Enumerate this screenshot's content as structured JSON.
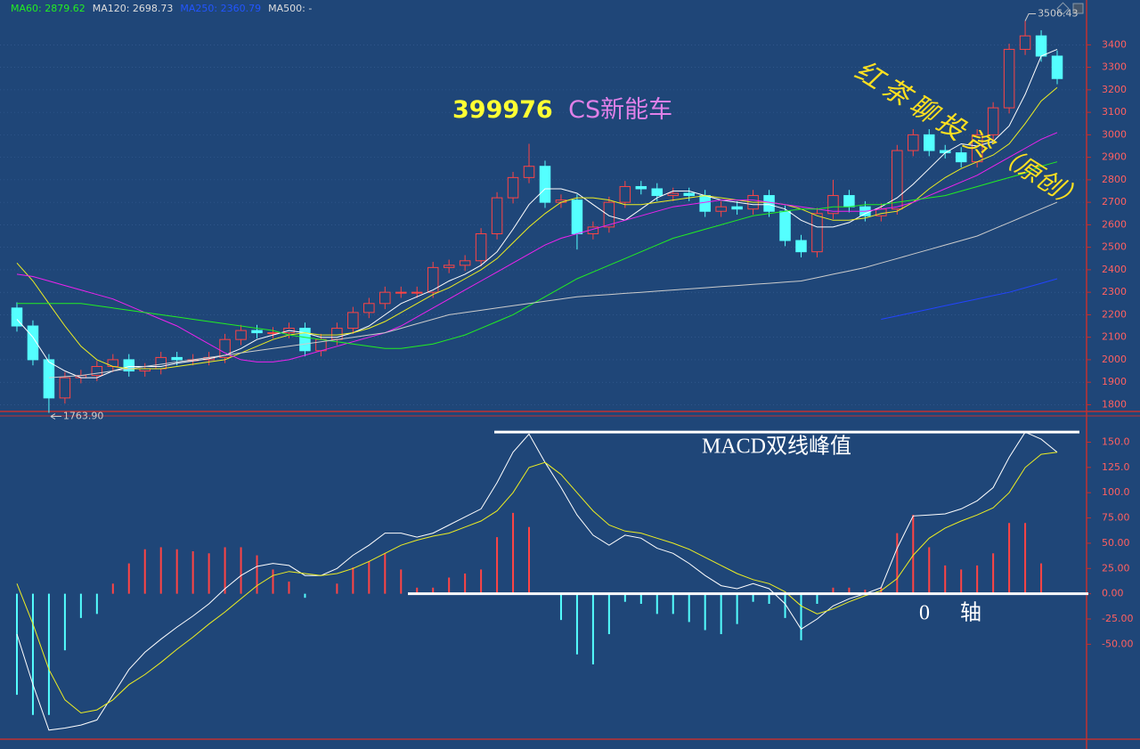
{
  "chart_data": [
    {
      "type": "candlestick",
      "title_code": "399976",
      "title_name": "CS新能车",
      "legend": [
        {
          "label": "MA60: 2879.62",
          "color": "#22ee22"
        },
        {
          "label": "MA120: 2698.73",
          "color": "#dddddd"
        },
        {
          "label": "MA250: 2360.79",
          "color": "#2255ff"
        },
        {
          "label": "MA500: -",
          "color": "#dddddd"
        }
      ],
      "watermark": [
        "红茶聊投资",
        "（原创）"
      ],
      "up_color": "#ff4444",
      "down_color": "#54ffff",
      "open": [
        2230,
        2150,
        2000,
        1830,
        1920,
        1930,
        1970,
        2000,
        1950,
        1960,
        2010,
        2000,
        2000,
        2010,
        2090,
        2130,
        2120,
        2120,
        2140,
        2040,
        2090,
        2140,
        2210,
        2250,
        2300,
        2300,
        2300,
        2410,
        2420,
        2440,
        2560,
        2720,
        2810,
        2860,
        2700,
        2710,
        2560,
        2590,
        2700,
        2770,
        2760,
        2730,
        2740,
        2730,
        2660,
        2680,
        2670,
        2730,
        2660,
        2530,
        2480,
        2650,
        2730,
        2680,
        2640,
        2670,
        2930,
        3000,
        2930,
        2920,
        2880,
        3000,
        3120,
        3380,
        3440,
        3350
      ],
      "high": [
        2255,
        2175,
        2025,
        1945,
        1955,
        1995,
        2025,
        2025,
        1985,
        2035,
        2035,
        2025,
        2035,
        2115,
        2155,
        2155,
        2145,
        2165,
        2165,
        2115,
        2165,
        2235,
        2275,
        2325,
        2325,
        2325,
        2435,
        2445,
        2465,
        2585,
        2745,
        2835,
        2960,
        2885,
        2735,
        2735,
        2615,
        2725,
        2795,
        2795,
        2785,
        2765,
        2765,
        2755,
        2705,
        2705,
        2755,
        2755,
        2685,
        2555,
        2675,
        2800,
        2755,
        2705,
        2695,
        2955,
        3025,
        3025,
        2955,
        2945,
        3025,
        3145,
        3405,
        3506.43,
        3465,
        3375
      ],
      "low": [
        2125,
        1975,
        1763.9,
        1805,
        1895,
        1905,
        1945,
        1925,
        1925,
        1935,
        1975,
        1975,
        1975,
        1985,
        2065,
        2095,
        2095,
        2095,
        2015,
        2015,
        2065,
        2115,
        2185,
        2225,
        2275,
        2275,
        2275,
        2385,
        2395,
        2415,
        2535,
        2695,
        2785,
        2675,
        2675,
        2490,
        2535,
        2565,
        2675,
        2735,
        2705,
        2705,
        2705,
        2635,
        2635,
        2645,
        2645,
        2635,
        2505,
        2455,
        2455,
        2625,
        2655,
        2615,
        2615,
        2645,
        2905,
        2905,
        2895,
        2855,
        2855,
        2975,
        3095,
        3355,
        3325,
        3225
      ],
      "close": [
        2150,
        2000,
        1830,
        1920,
        1930,
        1970,
        2000,
        1950,
        1960,
        2010,
        2000,
        2000,
        2010,
        2090,
        2130,
        2120,
        2120,
        2140,
        2040,
        2090,
        2140,
        2210,
        2250,
        2300,
        2300,
        2300,
        2410,
        2420,
        2440,
        2560,
        2720,
        2810,
        2860,
        2700,
        2710,
        2560,
        2590,
        2700,
        2770,
        2760,
        2730,
        2740,
        2730,
        2660,
        2680,
        2670,
        2730,
        2660,
        2530,
        2480,
        2650,
        2730,
        2680,
        2640,
        2670,
        2930,
        3000,
        2930,
        2920,
        2880,
        3000,
        3120,
        3380,
        3440,
        3350,
        3250
      ],
      "ma_lines": [
        {
          "color": "#ffffff",
          "values": [
            2180,
            2100,
            1990,
            1950,
            1920,
            1920,
            1950,
            1970,
            1970,
            1970,
            1985,
            1995,
            2005,
            2020,
            2050,
            2090,
            2110,
            2130,
            2120,
            2100,
            2100,
            2120,
            2150,
            2200,
            2250,
            2280,
            2310,
            2350,
            2380,
            2420,
            2480,
            2580,
            2690,
            2760,
            2760,
            2740,
            2690,
            2640,
            2620,
            2670,
            2720,
            2750,
            2750,
            2730,
            2710,
            2700,
            2690,
            2690,
            2670,
            2620,
            2590,
            2590,
            2610,
            2650,
            2680,
            2720,
            2780,
            2850,
            2920,
            2960,
            2950,
            2970,
            3040,
            3180,
            3350,
            3380
          ]
        },
        {
          "color": "#eeee22",
          "values": [
            2430,
            2350,
            2250,
            2150,
            2060,
            2000,
            1970,
            1960,
            1960,
            1960,
            1970,
            1980,
            1990,
            2000,
            2030,
            2060,
            2090,
            2110,
            2120,
            2110,
            2110,
            2120,
            2140,
            2170,
            2210,
            2250,
            2290,
            2320,
            2360,
            2400,
            2450,
            2520,
            2590,
            2650,
            2700,
            2720,
            2720,
            2710,
            2690,
            2690,
            2700,
            2710,
            2720,
            2730,
            2720,
            2710,
            2700,
            2700,
            2690,
            2670,
            2640,
            2620,
            2620,
            2630,
            2650,
            2660,
            2700,
            2760,
            2810,
            2850,
            2880,
            2910,
            2960,
            3050,
            3150,
            3210
          ]
        },
        {
          "color": "#ee22ee",
          "values": [
            2380,
            2370,
            2350,
            2330,
            2310,
            2290,
            2270,
            2240,
            2210,
            2180,
            2150,
            2110,
            2070,
            2030,
            2000,
            1990,
            1990,
            2000,
            2020,
            2040,
            2060,
            2080,
            2100,
            2120,
            2150,
            2190,
            2230,
            2270,
            2310,
            2350,
            2390,
            2430,
            2470,
            2510,
            2540,
            2560,
            2580,
            2600,
            2620,
            2640,
            2660,
            2680,
            2690,
            2700,
            2710,
            2710,
            2710,
            2700,
            2690,
            2680,
            2670,
            2660,
            2660,
            2660,
            2670,
            2680,
            2700,
            2730,
            2760,
            2790,
            2820,
            2860,
            2900,
            2940,
            2980,
            3010
          ]
        },
        {
          "color": "#22ee22",
          "values": [
            2250,
            2250,
            2250,
            2250,
            2250,
            2240,
            2230,
            2220,
            2210,
            2200,
            2190,
            2180,
            2170,
            2160,
            2150,
            2140,
            2130,
            2110,
            2100,
            2090,
            2080,
            2070,
            2060,
            2050,
            2050,
            2060,
            2070,
            2090,
            2110,
            2140,
            2170,
            2200,
            2240,
            2280,
            2320,
            2360,
            2390,
            2420,
            2450,
            2480,
            2510,
            2540,
            2560,
            2580,
            2600,
            2620,
            2640,
            2650,
            2660,
            2670,
            2670,
            2680,
            2680,
            2690,
            2690,
            2700,
            2710,
            2720,
            2730,
            2750,
            2770,
            2790,
            2810,
            2830,
            2860,
            2880
          ]
        },
        {
          "color": "#cccccc",
          "values": [
            null,
            null,
            1920,
            1925,
            1930,
            1940,
            1950,
            1960,
            1970,
            1980,
            1990,
            2000,
            2010,
            2020,
            2030,
            2040,
            2050,
            2060,
            2070,
            2080,
            2090,
            2100,
            2110,
            2120,
            2140,
            2160,
            2180,
            2200,
            2210,
            2220,
            2230,
            2240,
            2250,
            2260,
            2270,
            2280,
            2285,
            2290,
            2295,
            2300,
            2305,
            2310,
            2315,
            2320,
            2325,
            2330,
            2335,
            2340,
            2345,
            2350,
            2365,
            2380,
            2395,
            2410,
            2430,
            2450,
            2470,
            2490,
            2510,
            2530,
            2550,
            2580,
            2610,
            2640,
            2670,
            2700
          ]
        },
        {
          "color": "#2244ff",
          "values": [
            null,
            null,
            null,
            null,
            null,
            null,
            null,
            null,
            null,
            null,
            null,
            null,
            null,
            null,
            null,
            null,
            null,
            null,
            null,
            null,
            null,
            null,
            null,
            null,
            null,
            null,
            null,
            null,
            null,
            null,
            null,
            null,
            null,
            null,
            null,
            null,
            null,
            null,
            null,
            null,
            null,
            null,
            null,
            null,
            null,
            null,
            null,
            null,
            null,
            null,
            null,
            null,
            null,
            null,
            2180,
            2195,
            2210,
            2225,
            2240,
            2255,
            2270,
            2285,
            2300,
            2320,
            2340,
            2360
          ]
        }
      ],
      "max_label": 3506.43,
      "min_label": {
        "value": 1763.9,
        "label": "1763.90"
      },
      "ylim": [
        1770,
        3540
      ],
      "yticks": [
        1800,
        1900,
        2000,
        2100,
        2200,
        2300,
        2400,
        2500,
        2600,
        2700,
        2800,
        2900,
        3000,
        3100,
        3200,
        3300,
        3400
      ],
      "grid": true
    },
    {
      "type": "macd",
      "annotations": [
        "MACD双线峰值",
        "0 轴"
      ],
      "series": [
        {
          "color": "#ffffff",
          "values": [
            -40,
            -90,
            -135,
            -133,
            -130,
            -125,
            -100,
            -75,
            -58,
            -45,
            -33,
            -22,
            -10,
            5,
            18,
            27,
            30,
            28,
            18,
            18,
            25,
            38,
            48,
            60,
            60,
            56,
            60,
            68,
            76,
            84,
            110,
            140,
            158,
            130,
            105,
            78,
            58,
            48,
            58,
            55,
            45,
            40,
            30,
            18,
            8,
            5,
            10,
            5,
            -10,
            -35,
            -25,
            -12,
            -5,
            0,
            6,
            45,
            77,
            78,
            79,
            84,
            92,
            105,
            135,
            160,
            153,
            140
          ]
        },
        {
          "color": "#eeee22",
          "values": [
            10,
            -30,
            -75,
            -105,
            -118,
            -115,
            -105,
            -90,
            -80,
            -68,
            -55,
            -43,
            -30,
            -18,
            -5,
            8,
            18,
            22,
            20,
            18,
            20,
            25,
            32,
            40,
            48,
            53,
            57,
            60,
            66,
            72,
            82,
            100,
            125,
            130,
            118,
            100,
            82,
            68,
            62,
            60,
            55,
            50,
            44,
            36,
            28,
            20,
            14,
            10,
            2,
            -12,
            -20,
            -15,
            -8,
            -2,
            3,
            15,
            38,
            55,
            65,
            72,
            78,
            85,
            100,
            125,
            138,
            140
          ]
        }
      ],
      "histogram": {
        "up_color": "#ff4444",
        "down_color": "#54ffff",
        "values": [
          -100,
          -120,
          -120,
          -56,
          -24,
          -20,
          10,
          30,
          44,
          46,
          44,
          42,
          40,
          46,
          46,
          38,
          24,
          12,
          -4,
          0,
          10,
          26,
          32,
          40,
          24,
          6,
          6,
          16,
          20,
          24,
          56,
          80,
          66,
          0,
          -26,
          -60,
          -70,
          -40,
          -8,
          -10,
          -20,
          -20,
          -28,
          -36,
          -40,
          -30,
          -8,
          -10,
          -24,
          -46,
          -10,
          6,
          6,
          4,
          6,
          60,
          78,
          46,
          28,
          24,
          28,
          40,
          70,
          70,
          30,
          0
        ]
      },
      "ylim": [
        -144,
        176
      ],
      "yticks": [
        {
          "value": -50,
          "label": "-50.00"
        },
        {
          "value": -25,
          "label": "-25.00"
        },
        {
          "value": 0,
          "label": "0.00"
        },
        {
          "value": 25,
          "label": "25.00"
        },
        {
          "value": 50,
          "label": "50.00"
        },
        {
          "value": 75,
          "label": "75.00"
        },
        {
          "value": 100,
          "label": "100.0"
        },
        {
          "value": 125,
          "label": "125.0"
        },
        {
          "value": 150,
          "label": "150.0"
        }
      ]
    }
  ]
}
